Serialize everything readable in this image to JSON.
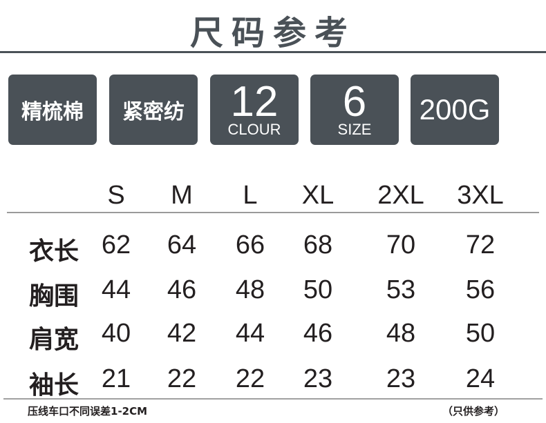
{
  "title": "尺码参考",
  "badges": [
    {
      "main": "精梳棉"
    },
    {
      "main": "紧密纺"
    },
    {
      "main": "12",
      "sub": "CLOUR"
    },
    {
      "main": "6",
      "sub": "SIZE"
    },
    {
      "main": "200G"
    }
  ],
  "colors": {
    "badge_bg": "#4a5157",
    "text": "#231f20"
  },
  "table": {
    "columns": [
      "S",
      "M",
      "L",
      "XL",
      "2XL",
      "3XL"
    ],
    "rows": [
      {
        "label": "衣长",
        "values": [
          "62",
          "64",
          "66",
          "68",
          "70",
          "72"
        ]
      },
      {
        "label": "胸围",
        "values": [
          "44",
          "46",
          "48",
          "50",
          "53",
          "56"
        ]
      },
      {
        "label": "肩宽",
        "values": [
          "40",
          "42",
          "44",
          "46",
          "48",
          "50"
        ]
      },
      {
        "label": "袖长",
        "values": [
          "21",
          "22",
          "22",
          "23",
          "23",
          "24"
        ]
      }
    ]
  },
  "footer": {
    "note": "压线车口不同误差1-2CM",
    "disclaimer": "（只供参考）"
  }
}
